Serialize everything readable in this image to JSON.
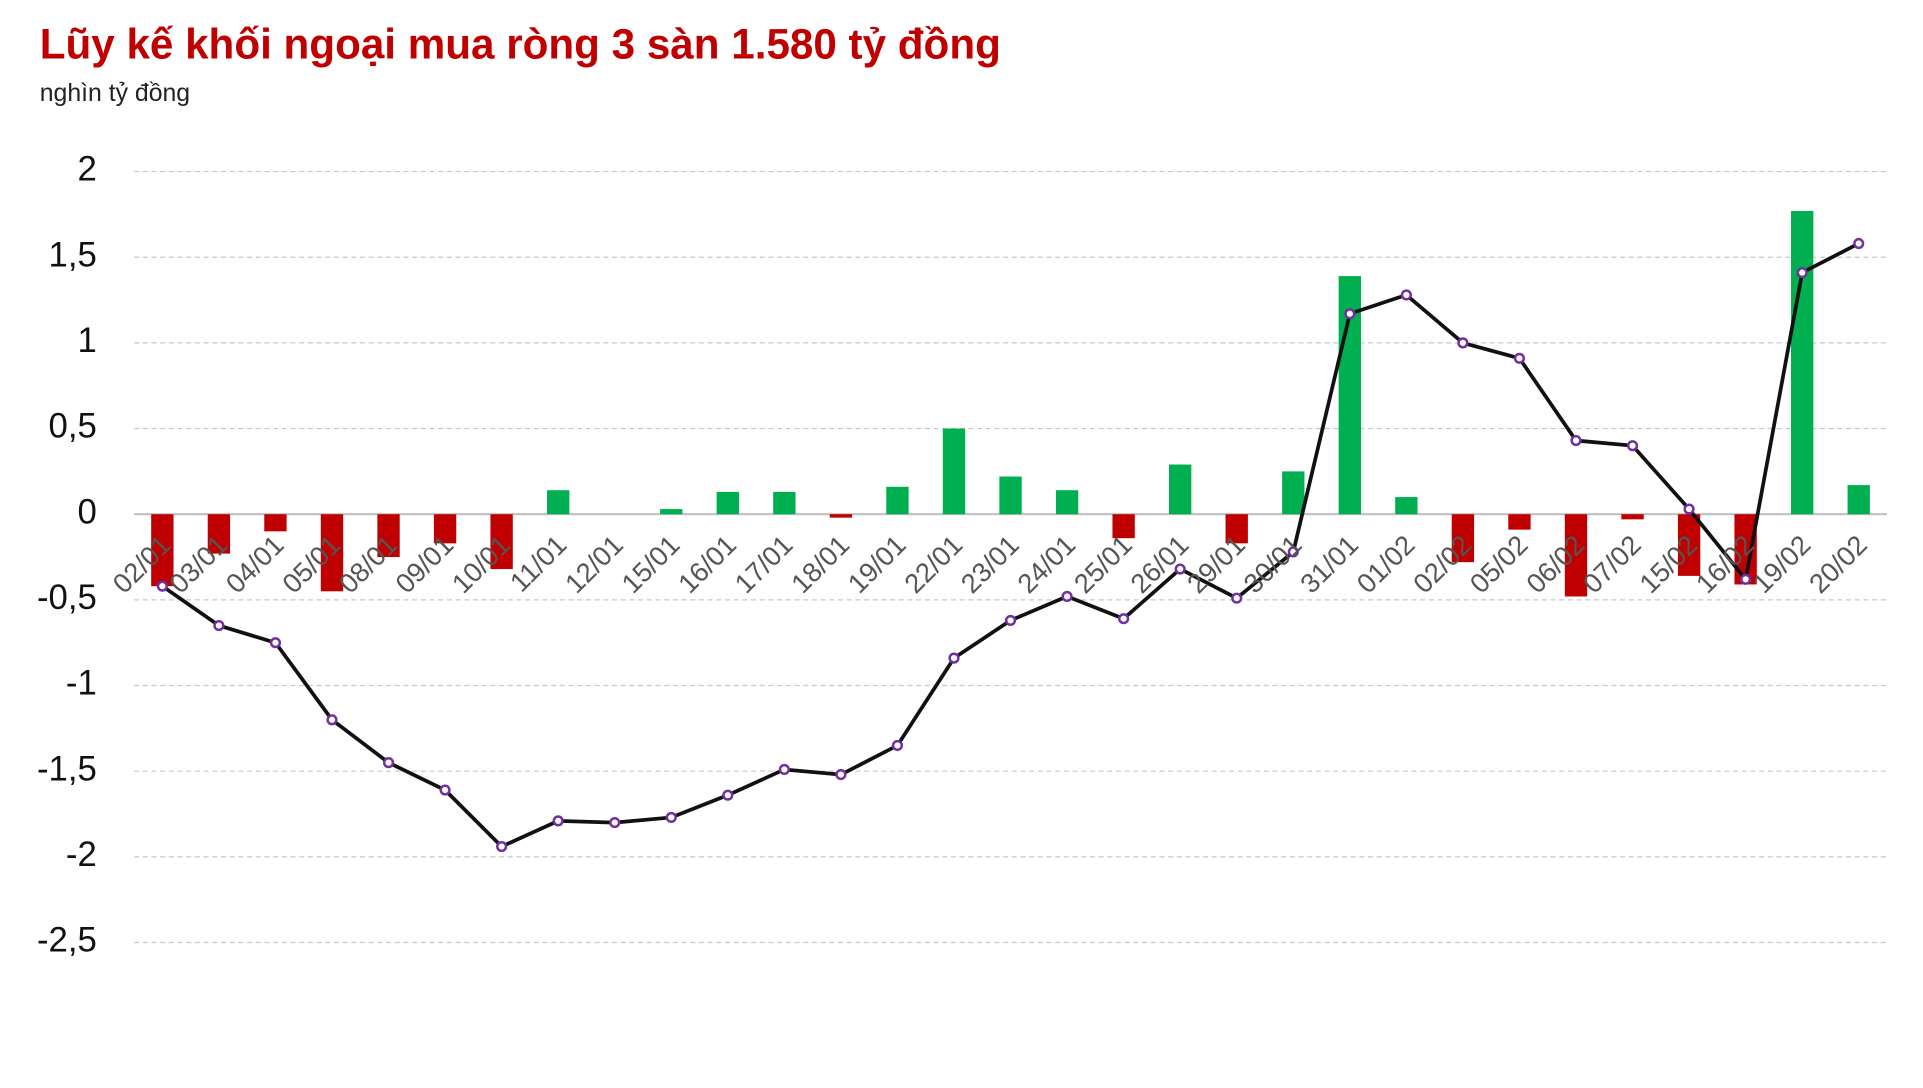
{
  "chart_data": {
    "type": "combo",
    "title": "Lũy kế khối ngoại mua ròng 3 sàn 1.580 tỷ đồng",
    "subtitle": "nghìn tỷ đồng",
    "categories": [
      "02/01",
      "03/01",
      "04/01",
      "05/01",
      "08/01",
      "09/01",
      "10/01",
      "11/01",
      "12/01",
      "15/01",
      "16/01",
      "17/01",
      "18/01",
      "19/01",
      "22/01",
      "23/01",
      "24/01",
      "25/01",
      "26/01",
      "29/01",
      "30/01",
      "31/01",
      "01/02",
      "02/02",
      "05/02",
      "06/02",
      "07/02",
      "15/02",
      "16/02",
      "19/02",
      "20/02"
    ],
    "series": [
      {
        "type": "bar",
        "positive_color": "#00b050",
        "negative_color": "#c00000",
        "values": [
          -0.42,
          -0.23,
          -0.1,
          -0.45,
          -0.25,
          -0.17,
          -0.32,
          0.14,
          0,
          0.03,
          0.13,
          0.13,
          -0.02,
          0.16,
          0.5,
          0.22,
          0.14,
          -0.14,
          0.29,
          -0.17,
          0.25,
          1.39,
          0.1,
          -0.28,
          -0.09,
          -0.48,
          -0.03,
          -0.36,
          -0.41,
          1.77,
          0.17
        ]
      },
      {
        "type": "line",
        "color": "#111111",
        "marker_color": "#7030a0",
        "values": [
          -0.42,
          -0.65,
          -0.75,
          -1.2,
          -1.45,
          -1.61,
          -1.94,
          -1.79,
          -1.8,
          -1.77,
          -1.64,
          -1.49,
          -1.52,
          -1.35,
          -0.84,
          -0.62,
          -0.48,
          -0.61,
          -0.32,
          -0.49,
          -0.22,
          1.17,
          1.28,
          1.0,
          0.91,
          0.43,
          0.4,
          0.03,
          -0.38,
          1.41,
          1.58
        ]
      }
    ],
    "ylim": [
      -2.5,
      2
    ],
    "yticks": [
      {
        "value": -2.5,
        "label": "-2,5"
      },
      -2,
      {
        "value": -1.5,
        "label": "-1,5"
      },
      -1,
      {
        "value": -0.5,
        "label": "-0,5"
      },
      0,
      {
        "value": 0.5,
        "label": "0,5"
      },
      1,
      {
        "value": 1.5,
        "label": "1,5"
      },
      2
    ],
    "grid": true
  }
}
